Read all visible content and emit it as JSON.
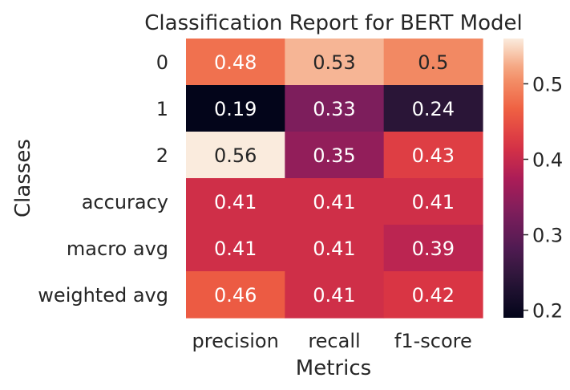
{
  "chart_data": {
    "type": "heatmap",
    "title": "Classification Report for BERT Model",
    "xlabel": "Metrics",
    "ylabel": "Classes",
    "columns": [
      "precision",
      "recall",
      "f1-score"
    ],
    "rows": [
      "0",
      "1",
      "2",
      "accuracy",
      "macro avg",
      "weighted avg"
    ],
    "values": [
      [
        0.48,
        0.53,
        0.5
      ],
      [
        0.19,
        0.33,
        0.24
      ],
      [
        0.56,
        0.35,
        0.43
      ],
      [
        0.41,
        0.41,
        0.41
      ],
      [
        0.41,
        0.41,
        0.39
      ],
      [
        0.46,
        0.41,
        0.42
      ]
    ],
    "cell_labels": [
      [
        "0.48",
        "0.53",
        "0.5"
      ],
      [
        "0.19",
        "0.33",
        "0.24"
      ],
      [
        "0.56",
        "0.35",
        "0.43"
      ],
      [
        "0.41",
        "0.41",
        "0.41"
      ],
      [
        "0.41",
        "0.41",
        "0.39"
      ],
      [
        "0.46",
        "0.41",
        "0.42"
      ]
    ],
    "colorbar": {
      "colormap": "rocket",
      "range": [
        0.19,
        0.56
      ],
      "ticks": [
        0.2,
        0.3,
        0.4,
        0.5
      ],
      "tick_labels": [
        "0.2",
        "0.3",
        "0.4",
        "0.5"
      ]
    }
  }
}
